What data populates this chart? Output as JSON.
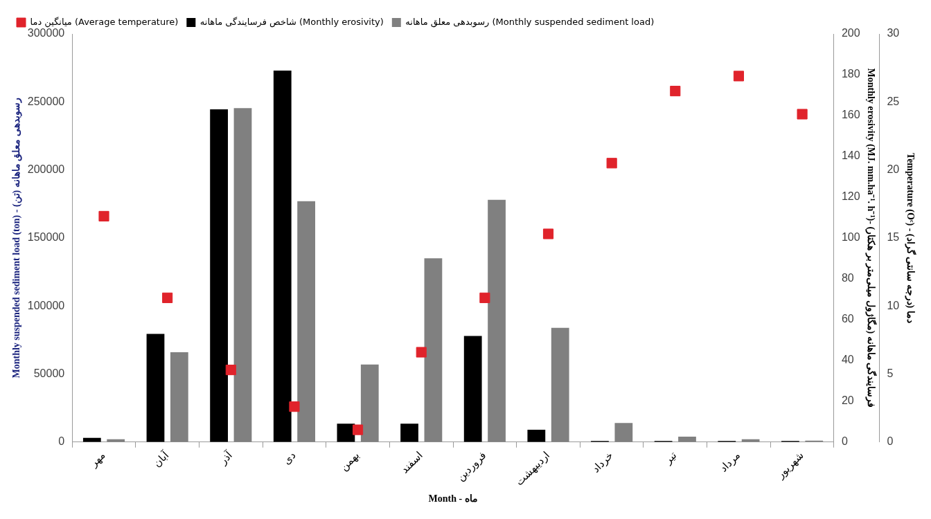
{
  "chart_data": {
    "type": "bar",
    "xlabel": "Month - ماه",
    "ylabel": "Monthly suspended sediment load (ton) - رسوبدهی معلق ماهانه (تن)",
    "y2label": "Monthly erosivity (MJ. mm.ha⁻¹. h⁻¹)- فرسایندگی ماهانه (مگاژول میلی‌متر بر هکتار)",
    "y3label": "Temperature (Oᶜ) - دما (درجه سانتی گراد)",
    "categories": [
      "مهر",
      "آبان",
      "آذر",
      "دی",
      "بهمن",
      "اسفند",
      "فروردین",
      "اردیبهشت",
      "خرداد",
      "تیر",
      "مرداد",
      "شهریور"
    ],
    "series": [
      {
        "name": "شاخص فرسایندگی ماهانه (Monthly erosivity)",
        "axis": "y2",
        "color": "#000000",
        "values": [
          2,
          53,
          163,
          182,
          9,
          9,
          52,
          6,
          0.5,
          0.5,
          0.5,
          0.5
        ]
      },
      {
        "name": "رسوبدهی معلق ماهانه (Monthly suspended sediment load)",
        "color": "#808080",
        "values": [
          2000,
          66000,
          245500,
          177000,
          57000,
          135000,
          178000,
          84000,
          14000,
          4000,
          2000,
          1000
        ]
      },
      {
        "name": "میانگین دما (Average temperature)",
        "type": "scatter",
        "axis": "y3",
        "marker": "square",
        "color": "#e0232b",
        "values": [
          16.6,
          10.6,
          5.3,
          2.6,
          0.9,
          6.6,
          10.6,
          15.3,
          20.5,
          25.8,
          26.9,
          24.1
        ]
      }
    ],
    "ylim": [
      0,
      300000
    ],
    "yticks": [
      0,
      50000,
      100000,
      150000,
      200000,
      250000,
      300000
    ],
    "y2lim": [
      0,
      200
    ],
    "y2ticks": [
      0,
      20,
      40,
      60,
      80,
      100,
      120,
      140,
      160,
      180,
      200
    ],
    "y3lim": [
      0,
      30
    ],
    "y3ticks": [
      0,
      5,
      10,
      15,
      20,
      25,
      30
    ],
    "grid": false,
    "legend": "top left"
  }
}
